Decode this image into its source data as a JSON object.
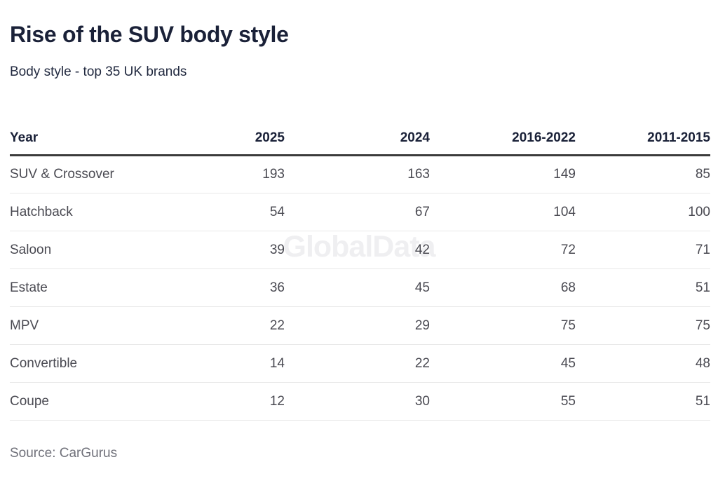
{
  "page": {
    "title": "Rise of the SUV body style",
    "subtitle": "Body style - top 35 UK brands",
    "watermark": "GlobalData",
    "source": "Source: CarGurus"
  },
  "chart_data": {
    "type": "table",
    "title": "Rise of the SUV body style",
    "subtitle": "Body style - top 35 UK brands",
    "columns": [
      "Year",
      "2025",
      "2024",
      "2016-2022",
      "2011-2015"
    ],
    "rows": [
      {
        "label": "SUV & Crossover",
        "values": [
          193,
          163,
          149,
          85
        ]
      },
      {
        "label": "Hatchback",
        "values": [
          54,
          67,
          104,
          100
        ]
      },
      {
        "label": "Saloon",
        "values": [
          39,
          42,
          72,
          71
        ]
      },
      {
        "label": "Estate",
        "values": [
          36,
          45,
          68,
          51
        ]
      },
      {
        "label": "MPV",
        "values": [
          22,
          29,
          75,
          75
        ]
      },
      {
        "label": "Convertible",
        "values": [
          14,
          22,
          45,
          48
        ]
      },
      {
        "label": "Coupe",
        "values": [
          12,
          30,
          55,
          51
        ]
      }
    ],
    "source": "Source: CarGurus",
    "watermark": "GlobalData",
    "legend_position": "none",
    "grid": "horizontal-row-rules"
  },
  "colors": {
    "background": "#ffffff",
    "title_text": "#1a2138",
    "header_text": "#1a2138",
    "body_text": "#4a4a52",
    "header_rule": "#3b3b3b",
    "row_rule": "#e8e8e8",
    "source_text": "#70717a",
    "watermark_text": "#efeff1"
  }
}
